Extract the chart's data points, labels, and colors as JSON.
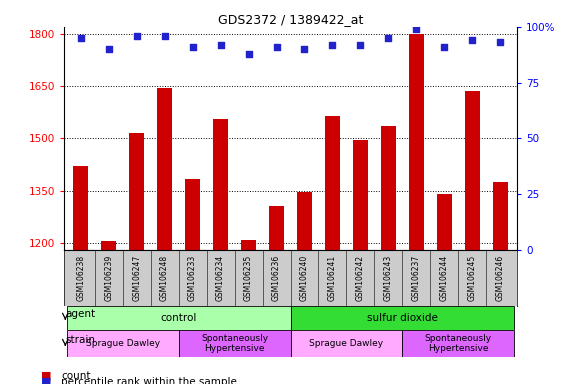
{
  "title": "GDS2372 / 1389422_at",
  "samples": [
    "GSM106238",
    "GSM106239",
    "GSM106247",
    "GSM106248",
    "GSM106233",
    "GSM106234",
    "GSM106235",
    "GSM106236",
    "GSM106240",
    "GSM106241",
    "GSM106242",
    "GSM106243",
    "GSM106237",
    "GSM106244",
    "GSM106245",
    "GSM106246"
  ],
  "counts": [
    1420,
    1205,
    1515,
    1645,
    1385,
    1555,
    1210,
    1305,
    1345,
    1565,
    1495,
    1535,
    1800,
    1340,
    1635,
    1375
  ],
  "percentiles": [
    95,
    90,
    96,
    96,
    91,
    92,
    88,
    91,
    90,
    92,
    92,
    95,
    99,
    91,
    94,
    93
  ],
  "ylim_left": [
    1180,
    1820
  ],
  "ylim_right": [
    0,
    100
  ],
  "yticks_left": [
    1200,
    1350,
    1500,
    1650,
    1800
  ],
  "yticks_right": [
    0,
    25,
    50,
    75,
    100
  ],
  "bar_color": "#cc0000",
  "dot_color": "#2222cc",
  "label_bg_color": "#cccccc",
  "agent_groups": [
    {
      "label": "control",
      "start": 0,
      "end": 8,
      "color": "#aaffaa"
    },
    {
      "label": "sulfur dioxide",
      "start": 8,
      "end": 16,
      "color": "#33dd33"
    }
  ],
  "strain_groups": [
    {
      "label": "Sprague Dawley",
      "start": 0,
      "end": 4,
      "color": "#ffaaff"
    },
    {
      "label": "Spontaneously\nHypertensive",
      "start": 4,
      "end": 8,
      "color": "#dd66ff"
    },
    {
      "label": "Sprague Dawley",
      "start": 8,
      "end": 12,
      "color": "#ffaaff"
    },
    {
      "label": "Spontaneously\nHypertensive",
      "start": 12,
      "end": 16,
      "color": "#dd66ff"
    }
  ]
}
